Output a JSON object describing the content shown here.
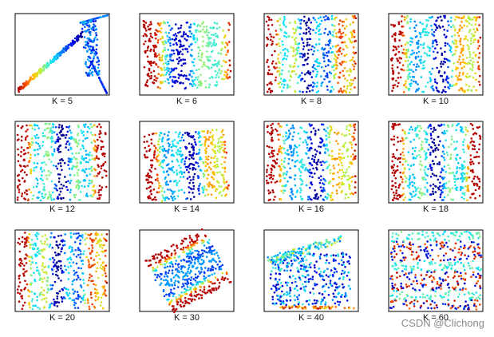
{
  "figure": {
    "watermark": "CSDN @Clichong"
  },
  "chart_data": [
    {
      "type": "scatter",
      "label": "K = 5"
    },
    {
      "type": "scatter",
      "label": "K = 6"
    },
    {
      "type": "scatter",
      "label": "K = 8"
    },
    {
      "type": "scatter",
      "label": "K = 10"
    },
    {
      "type": "scatter",
      "label": "K = 12"
    },
    {
      "type": "scatter",
      "label": "K = 14"
    },
    {
      "type": "scatter",
      "label": "K = 16"
    },
    {
      "type": "scatter",
      "label": "K = 18"
    },
    {
      "type": "scatter",
      "label": "K = 20"
    },
    {
      "type": "scatter",
      "label": "K = 30"
    },
    {
      "type": "scatter",
      "label": "K = 40"
    },
    {
      "type": "scatter",
      "label": "K = 60"
    }
  ]
}
